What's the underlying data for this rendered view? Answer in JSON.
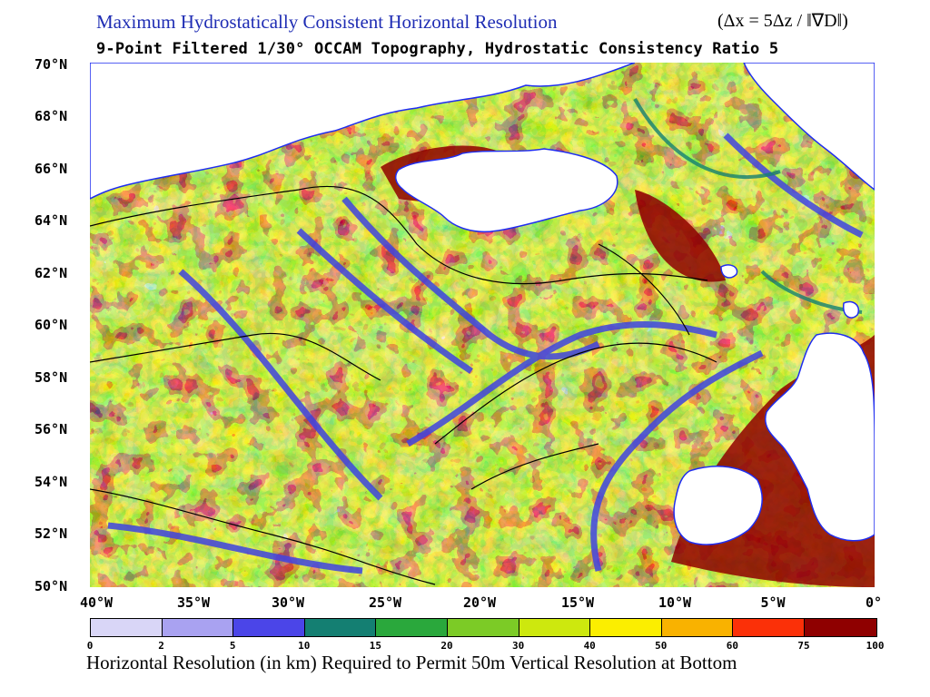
{
  "title_main": "Maximum Hydrostatically Consistent Horizontal Resolution",
  "formula": "(Δx = 5Δz / ‖∇D‖)",
  "subtitle": "9-Point Filtered 1/30° OCCAM Topography, Hydrostatic Consistency Ratio 5",
  "lat_labels": [
    "70°N",
    "68°N",
    "66°N",
    "64°N",
    "62°N",
    "60°N",
    "58°N",
    "56°N",
    "54°N",
    "52°N",
    "50°N"
  ],
  "lon_labels": [
    "40°W",
    "35°W",
    "30°W",
    "25°W",
    "20°W",
    "15°W",
    "10°W",
    "5°W",
    "0°"
  ],
  "colorbar": {
    "ticks": [
      "0",
      "2",
      "5",
      "10",
      "15",
      "20",
      "30",
      "40",
      "50",
      "60",
      "75",
      "100"
    ],
    "colors": [
      "#d9d6f7",
      "#a9a2f1",
      "#4b45e8",
      "#147f72",
      "#2aa83c",
      "#7ccb26",
      "#cde80e",
      "#fbee00",
      "#f9b200",
      "#fb3008",
      "#8f0000"
    ],
    "caption": "Horizontal Resolution (in km) Required to Permit 50m Vertical Resolution at Bottom"
  },
  "map": {
    "land_color": "#ffffff",
    "coast_color": "#1f2df0",
    "contour_color": "#000000"
  }
}
